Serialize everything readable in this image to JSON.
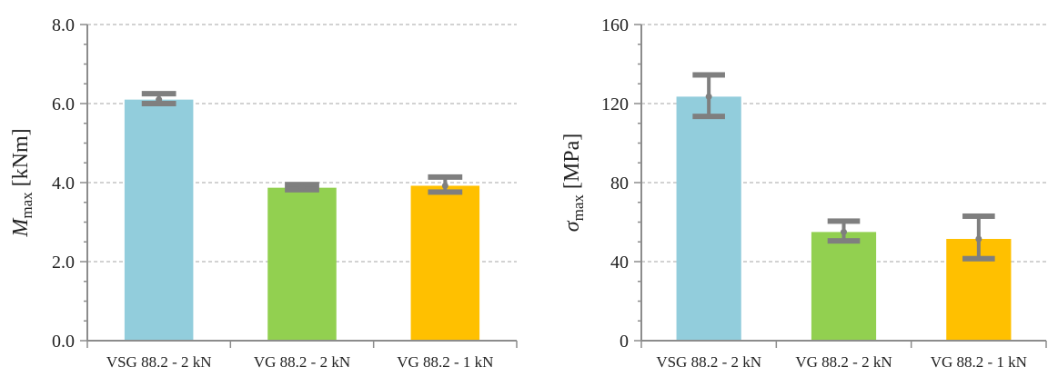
{
  "colors": {
    "axis": "#8c8c8c",
    "grid": "#a6a6a6",
    "errorbar": "#7f7f7f"
  },
  "chart_data": [
    {
      "type": "bar",
      "ylabel": {
        "main": "M",
        "sub": "max",
        "unit": "[kNm]"
      },
      "ylabel_italic_main": true,
      "categories": [
        "VSG 88.2 - 2 kN",
        "VG 88.2 - 2 kN",
        "VG 88.2 - 1 kN"
      ],
      "values": [
        6.1,
        3.87,
        3.92
      ],
      "err_low": [
        6.0,
        3.82,
        3.76
      ],
      "err_high": [
        6.25,
        3.95,
        4.14
      ],
      "bar_colors": [
        "#92cddc",
        "#92d050",
        "#ffc000"
      ],
      "ylim": [
        0,
        8
      ],
      "yticks": [
        0,
        2,
        4,
        6,
        8
      ],
      "ytick_labels": [
        "0.0",
        "2.0",
        "4.0",
        "6.0",
        "8.0"
      ],
      "grid": true
    },
    {
      "type": "bar",
      "ylabel": {
        "main": "σ",
        "sub": "max",
        "unit": "[MPa]"
      },
      "ylabel_italic_main": true,
      "categories": [
        "VSG 88.2 - 2 kN",
        "VG 88.2 - 2 kN",
        "VG 88.2 - 1 kN"
      ],
      "values": [
        123.5,
        55,
        51.5
      ],
      "err_low": [
        113.5,
        50.5,
        41.5
      ],
      "err_high": [
        134.5,
        60.5,
        63
      ],
      "bar_colors": [
        "#92cddc",
        "#92d050",
        "#ffc000"
      ],
      "ylim": [
        0,
        160
      ],
      "yticks": [
        0,
        40,
        80,
        120,
        160
      ],
      "ytick_labels": [
        "0",
        "40",
        "80",
        "120",
        "160"
      ],
      "grid": true
    }
  ]
}
